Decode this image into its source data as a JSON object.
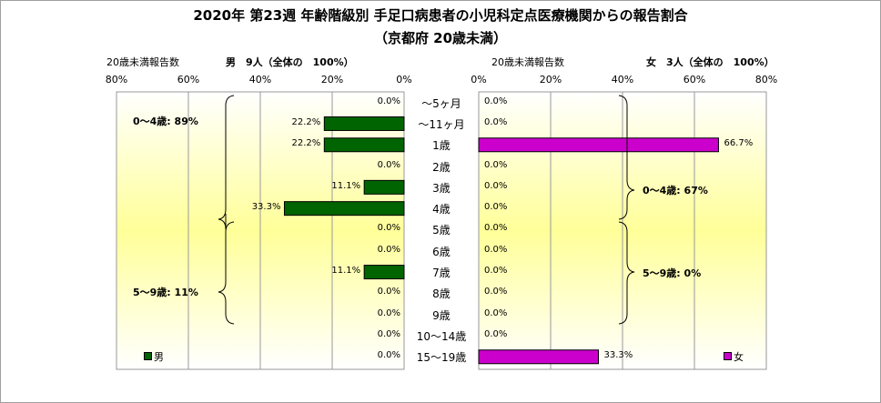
{
  "title_line1": "2020年 第23週 年齢階級別 手足口病患者の小児科定点医療機関からの報告割合",
  "title_line2": "（京都府 20歳未満）",
  "chart_data": {
    "type": "bar",
    "orientation": "horizontal-butterfly",
    "categories": [
      "～5ヶ月",
      "～11ヶ月",
      "1歳",
      "2歳",
      "3歳",
      "4歳",
      "5歳",
      "6歳",
      "7歳",
      "8歳",
      "9歳",
      "10～14歳",
      "15～19歳"
    ],
    "xlim": [
      0,
      80
    ],
    "ticks_male": [
      "80%",
      "60%",
      "40%",
      "20%",
      "0%"
    ],
    "ticks_female": [
      "0%",
      "20%",
      "40%",
      "60%",
      "80%"
    ],
    "male": {
      "header_label": "20歳未満報告数",
      "summary": "男　9人（全体の　100%）",
      "legend": "男",
      "color": "#006400",
      "values": [
        0.0,
        22.2,
        22.2,
        0.0,
        11.1,
        33.3,
        0.0,
        0.0,
        11.1,
        0.0,
        0.0,
        0.0,
        0.0
      ],
      "labels": [
        "0.0%",
        "22.2%",
        "22.2%",
        "0.0%",
        "11.1%",
        "33.3%",
        "0.0%",
        "0.0%",
        "11.1%",
        "0.0%",
        "0.0%",
        "0.0%",
        "0.0%"
      ],
      "group_0_4": "0～4歳: 89%",
      "group_5_9": "5～9歳: 11%"
    },
    "female": {
      "header_label": "20歳未満報告数",
      "summary": "女　3人（全体の　100%）",
      "legend": "女",
      "color": "#cc00cc",
      "values": [
        0.0,
        0.0,
        66.7,
        0.0,
        0.0,
        0.0,
        0.0,
        0.0,
        0.0,
        0.0,
        0.0,
        0.0,
        33.3
      ],
      "labels": [
        "0.0%",
        "0.0%",
        "66.7%",
        "0.0%",
        "0.0%",
        "0.0%",
        "0.0%",
        "0.0%",
        "0.0%",
        "0.0%",
        "0.0%",
        "0.0%",
        "33.3%"
      ],
      "group_0_4": "0～4歳: 67%",
      "group_5_9": "5～9歳: 0%"
    }
  }
}
